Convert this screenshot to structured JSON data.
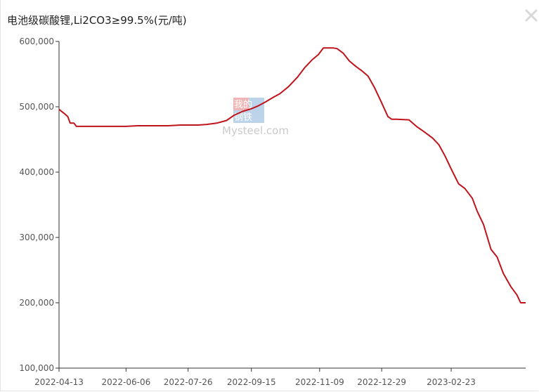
{
  "title": "电池级碳酸锂,Li2CO3≥99.5%(元/吨)",
  "watermark": {
    "cn_top": "我的",
    "cn_bottom": "钢铁",
    "en": "Mysteel.com"
  },
  "close_icon": "close-icon",
  "colors": {
    "line": "#c0141c",
    "axis": "#333333",
    "text": "#555555"
  },
  "chart_data": {
    "type": "line",
    "title": "电池级碳酸锂,Li2CO3≥99.5%(元/吨)",
    "xlabel": "",
    "ylabel": "",
    "grid": false,
    "ylim": [
      100000,
      600000
    ],
    "y_ticks": [
      100000,
      200000,
      300000,
      400000,
      500000,
      600000
    ],
    "y_tick_labels": [
      "100,000",
      "200,000",
      "300,000",
      "400,000",
      "500,000",
      "600,000"
    ],
    "x_ticks": [
      "2022-04-13",
      "2022-06-06",
      "2022-07-26",
      "2022-09-15",
      "2022-11-09",
      "2022-12-29",
      "2023-02-23"
    ],
    "xlim": [
      "2022-04-13",
      "2023-04-24"
    ],
    "series": [
      {
        "x": [
          "2022-04-13",
          "2022-04-17",
          "2022-04-20",
          "2022-04-22",
          "2022-04-25",
          "2022-04-27",
          "2022-05-15",
          "2022-06-01",
          "2022-06-06",
          "2022-06-15",
          "2022-07-01",
          "2022-07-10",
          "2022-07-20",
          "2022-07-26",
          "2022-08-03",
          "2022-08-10",
          "2022-08-18",
          "2022-08-26",
          "2022-09-01",
          "2022-09-08",
          "2022-09-15",
          "2022-09-20",
          "2022-09-26",
          "2022-10-03",
          "2022-10-08",
          "2022-10-15",
          "2022-10-22",
          "2022-10-28",
          "2022-11-03",
          "2022-11-08",
          "2022-11-12",
          "2022-11-20",
          "2022-11-23",
          "2022-11-28",
          "2022-12-03",
          "2022-12-08",
          "2022-12-13",
          "2022-12-18",
          "2022-12-23",
          "2022-12-28",
          "2023-01-03",
          "2023-01-06",
          "2023-01-10",
          "2023-01-20",
          "2023-01-26",
          "2023-02-01",
          "2023-02-08",
          "2023-02-13",
          "2023-02-18",
          "2023-02-23",
          "2023-03-01",
          "2023-03-06",
          "2023-03-12",
          "2023-03-16",
          "2023-03-21",
          "2023-03-27",
          "2023-04-01",
          "2023-04-06",
          "2023-04-12",
          "2023-04-17",
          "2023-04-20",
          "2023-04-24"
        ],
        "y": [
          496000,
          490000,
          485000,
          475000,
          475000,
          470000,
          470000,
          470000,
          470000,
          471000,
          471000,
          471000,
          472000,
          472000,
          472000,
          473000,
          475000,
          479000,
          487000,
          493000,
          497000,
          501000,
          507000,
          515000,
          520000,
          531000,
          545000,
          560000,
          572000,
          580000,
          590000,
          590000,
          589000,
          582000,
          570000,
          562000,
          555000,
          547000,
          530000,
          510000,
          485000,
          481000,
          481000,
          480000,
          470000,
          462000,
          452000,
          442000,
          425000,
          405000,
          382000,
          375000,
          360000,
          340000,
          320000,
          282000,
          270000,
          245000,
          225000,
          212000,
          200000,
          200000
        ]
      }
    ]
  }
}
